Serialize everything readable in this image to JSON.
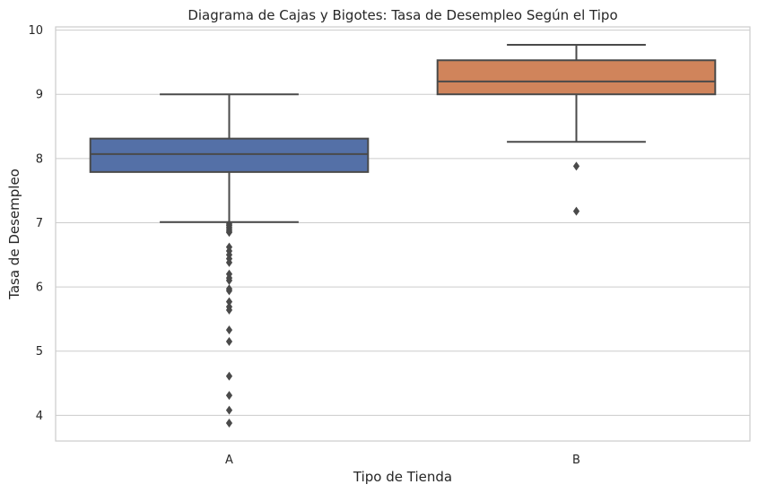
{
  "chart_data": {
    "type": "box",
    "title": "Diagrama de Cajas y Bigotes: Tasa de Desempleo Según el Tipo",
    "xlabel": "Tipo de Tienda",
    "ylabel": "Tasa de Desempleo",
    "categories": [
      "A",
      "B"
    ],
    "ylim": [
      3.6,
      10.05
    ],
    "yticks": [
      4,
      5,
      6,
      7,
      8,
      9,
      10
    ],
    "grid": "horizontal",
    "colors": [
      "#5470a7",
      "#d0845b"
    ],
    "boxes": [
      {
        "category": "A",
        "whisker_low": 7.01,
        "q1": 7.79,
        "median": 8.07,
        "q3": 8.31,
        "whisker_high": 9.0,
        "outliers": [
          6.98,
          6.96,
          6.93,
          6.9,
          6.87,
          6.85,
          6.62,
          6.56,
          6.5,
          6.44,
          6.38,
          6.2,
          6.14,
          6.1,
          5.97,
          5.94,
          5.77,
          5.69,
          5.64,
          5.33,
          5.15,
          4.61,
          4.31,
          4.08,
          3.88
        ]
      },
      {
        "category": "B",
        "whisker_low": 8.26,
        "q1": 9.0,
        "median": 9.2,
        "q3": 9.53,
        "whisker_high": 9.77,
        "outliers": [
          7.88,
          7.18
        ]
      }
    ]
  }
}
